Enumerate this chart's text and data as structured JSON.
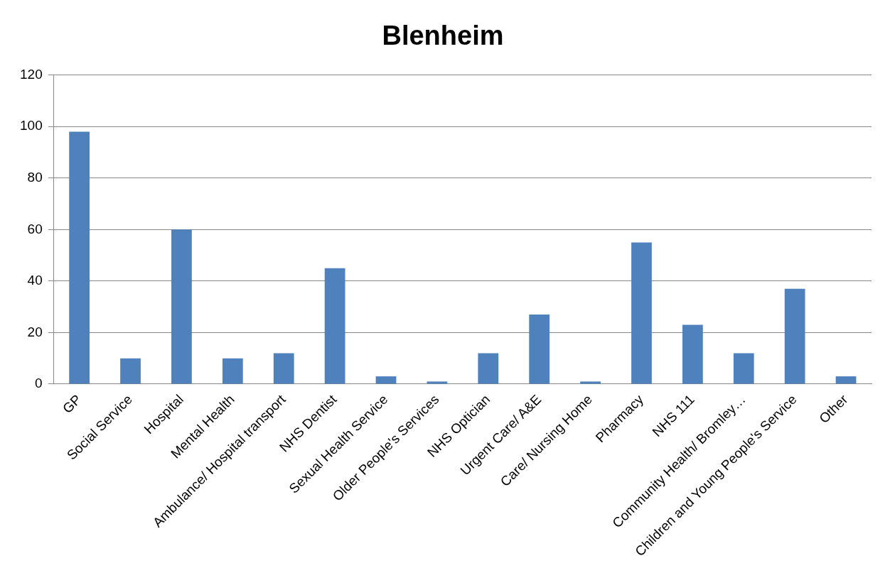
{
  "chart_data": {
    "type": "bar",
    "title": "Blenheim",
    "categories": [
      "GP",
      "Social Service",
      "Hospital",
      "Mental Health",
      "Ambulance/ Hospital transport",
      "NHS Dentist",
      "Sexual Health Service",
      "Older People's Services",
      "NHS Optician",
      "Urgent Care/ A&E",
      "Care/ Nursing Home",
      "Pharmacy",
      "NHS 111",
      "Community Health/ Bromley…",
      "Children and Young People's Service",
      "Other"
    ],
    "values": [
      98,
      10,
      60,
      10,
      12,
      45,
      3,
      1,
      12,
      27,
      1,
      55,
      23,
      12,
      37,
      3
    ],
    "color": "#4f81bd",
    "ylim": [
      0,
      120
    ],
    "yticks": [
      0,
      20,
      40,
      60,
      80,
      100,
      120
    ],
    "grid": "y",
    "legend": false
  }
}
